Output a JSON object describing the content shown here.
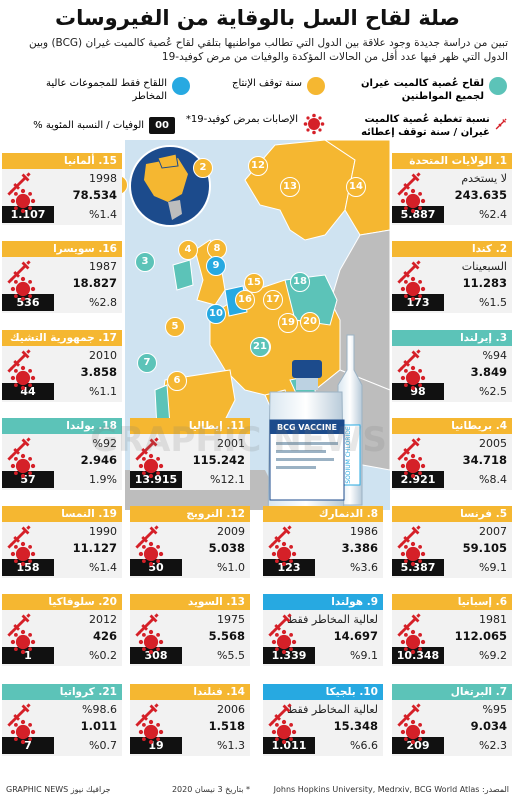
{
  "title": "صلة لقاح السل بالوقاية من الفيروسات",
  "subtitle": "تبين من دراسة جديدة وجود علاقة بين الدول التي تطالب مواطنيها بتلقي لقاح عُصية كالميت غيران (BCG) وبين الدول التي ظهر فيها عدد أقل من الحالات المؤكدة والوفيات من مرض كوفيد-19",
  "legend": {
    "teal": "لقاح عُصية كالميت غيران لجميع المواطنين",
    "yellow": "سنة توقف الإنتاج",
    "blue": "اللقاح فقط للمجموعات عالية المخاطر",
    "coverage": "نسبة تغطية عُصية كالميت غيران / سنة توقف إعطائه",
    "cases": "الإصابات بمرض كوفيد-19*",
    "deaths_box": "00",
    "deaths": "الوفيات / النسبة المئوية %"
  },
  "colors": {
    "teal": "#5cc3b8",
    "yellow": "#f5b731",
    "blue": "#27a9e1",
    "red": "#d52028"
  },
  "cards": [
    {
      "no": "1.",
      "name": "الولايات المتحدة",
      "status": "لا يستخدم",
      "cases": "243.635",
      "pct": "%2.4",
      "deaths": "5.887",
      "color": "yellow"
    },
    {
      "no": "2.",
      "name": "كندا",
      "status": "السبعينات",
      "cases": "11.283",
      "pct": "%1.5",
      "deaths": "173",
      "color": "yellow"
    },
    {
      "no": "3.",
      "name": "إيرلندا",
      "status": "%94",
      "cases": "3.849",
      "pct": "%2.5",
      "deaths": "98",
      "color": "teal"
    },
    {
      "no": "4.",
      "name": "بريطانيا",
      "status": "2005",
      "cases": "34.718",
      "pct": "%8.4",
      "deaths": "2.921",
      "color": "yellow"
    },
    {
      "no": "5.",
      "name": "فرنسا",
      "status": "2007",
      "cases": "59.105",
      "pct": "%9.1",
      "deaths": "5.387",
      "color": "yellow"
    },
    {
      "no": "6.",
      "name": "إسبانيا",
      "status": "1981",
      "cases": "112.065",
      "pct": "%9.2",
      "deaths": "10.348",
      "color": "yellow"
    },
    {
      "no": "7.",
      "name": "البرتغال",
      "status": "%95",
      "cases": "9.034",
      "pct": "%2.3",
      "deaths": "209",
      "color": "teal"
    },
    {
      "no": "8.",
      "name": "الدنمارك",
      "status": "1986",
      "cases": "3.386",
      "pct": "%3.6",
      "deaths": "123",
      "color": "yellow"
    },
    {
      "no": "9.",
      "name": "هولندا",
      "status": "لعالية المخاطر فقط",
      "cases": "14.697",
      "pct": "%9.1",
      "deaths": "1.339",
      "color": "blue"
    },
    {
      "no": "10.",
      "name": "بلجيكا",
      "status": "لعالية المخاطر فقط",
      "cases": "15.348",
      "pct": "%6.6",
      "deaths": "1.011",
      "color": "blue"
    },
    {
      "no": "11.",
      "name": "إيطاليا",
      "status": "2001",
      "cases": "115.242",
      "pct": "%12.1",
      "deaths": "13.915",
      "color": "yellow"
    },
    {
      "no": "12.",
      "name": "النرويج",
      "status": "2009",
      "cases": "5.038",
      "pct": "%1.0",
      "deaths": "50",
      "color": "yellow"
    },
    {
      "no": "13.",
      "name": "السويد",
      "status": "1975",
      "cases": "5.568",
      "pct": "%5.5",
      "deaths": "308",
      "color": "yellow"
    },
    {
      "no": "14.",
      "name": "فنلندا",
      "status": "2006",
      "cases": "1.518",
      "pct": "%1.3",
      "deaths": "19",
      "color": "yellow"
    },
    {
      "no": "15.",
      "name": "ألمانيا",
      "status": "1998",
      "cases": "78.534",
      "pct": "%1.4",
      "deaths": "1.107",
      "color": "yellow"
    },
    {
      "no": "16.",
      "name": "سويسرا",
      "status": "1987",
      "cases": "18.827",
      "pct": "%2.8",
      "deaths": "536",
      "color": "yellow"
    },
    {
      "no": "17.",
      "name": "جمهورية التشيك",
      "status": "2010",
      "cases": "3.858",
      "pct": "%1.1",
      "deaths": "44",
      "color": "yellow"
    },
    {
      "no": "18.",
      "name": "بولندا",
      "status": "%92",
      "cases": "2.946",
      "pct": "1.9%",
      "deaths": "57",
      "color": "teal"
    },
    {
      "no": "19.",
      "name": "النمسا",
      "status": "1990",
      "cases": "11.127",
      "pct": "%1.4",
      "deaths": "158",
      "color": "yellow"
    },
    {
      "no": "20.",
      "name": "سلوفاكيا",
      "status": "2012",
      "cases": "426",
      "pct": "%0.2",
      "deaths": "1",
      "color": "yellow"
    },
    {
      "no": "21.",
      "name": "كرواتيا",
      "status": "%98.6",
      "cases": "1.011",
      "pct": "%0.7",
      "deaths": "7",
      "color": "teal"
    }
  ],
  "vial_labels": {
    "main": "BCG VACCINE",
    "ampoule": "SODIUM CHLORIDE"
  },
  "footer": {
    "source": "المصدر: Johns Hopkins University, Medrxiv, BCG World Atlas",
    "date": "* بتاريخ 3 نيسان 2020",
    "credit": "جرافيك نيوز GRAPHIC NEWS",
    "watermark": "GRAPHIC NEWS"
  },
  "map_markers": [
    {
      "no": "1",
      "color": "yellow"
    },
    {
      "no": "2",
      "color": "yellow"
    },
    {
      "no": "3",
      "color": "teal"
    },
    {
      "no": "4",
      "color": "yellow"
    },
    {
      "no": "5",
      "color": "yellow"
    },
    {
      "no": "6",
      "color": "yellow"
    },
    {
      "no": "7",
      "color": "teal"
    },
    {
      "no": "8",
      "color": "yellow"
    },
    {
      "no": "9",
      "color": "blue"
    },
    {
      "no": "10",
      "color": "blue"
    },
    {
      "no": "11",
      "color": "yellow"
    },
    {
      "no": "12",
      "color": "yellow"
    },
    {
      "no": "13",
      "color": "yellow"
    },
    {
      "no": "14",
      "color": "yellow"
    },
    {
      "no": "15",
      "color": "yellow"
    },
    {
      "no": "16",
      "color": "yellow"
    },
    {
      "no": "17",
      "color": "yellow"
    },
    {
      "no": "18",
      "color": "teal"
    },
    {
      "no": "19",
      "color": "yellow"
    },
    {
      "no": "20",
      "color": "yellow"
    },
    {
      "no": "21",
      "color": "teal"
    }
  ]
}
